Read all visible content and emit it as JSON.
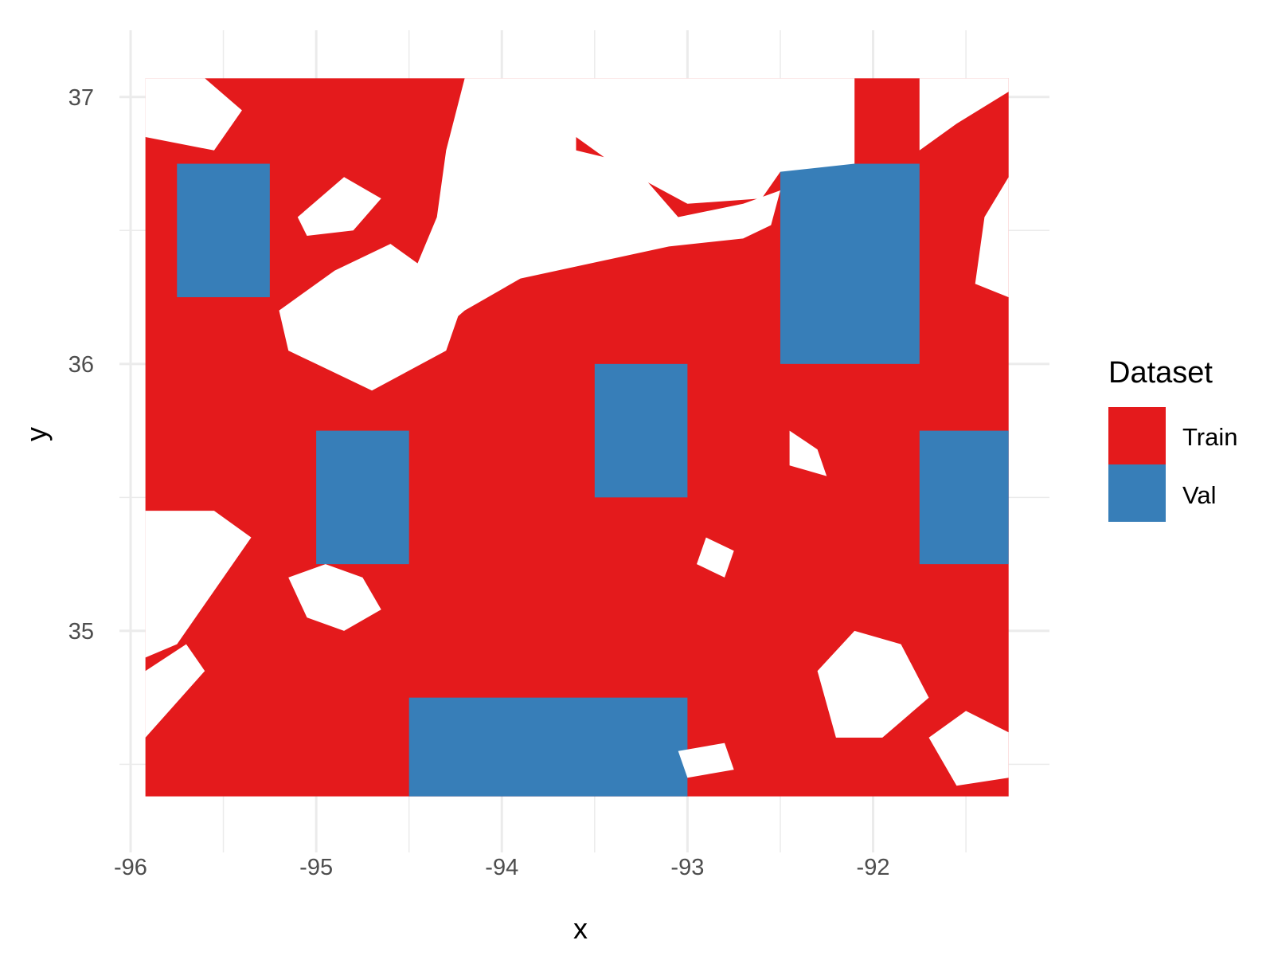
{
  "chart_data": {
    "type": "heatmap",
    "title": "",
    "xlabel": "x",
    "ylabel": "y",
    "xlim": [
      -96.06,
      -91.05
    ],
    "ylim": [
      34.17,
      37.25
    ],
    "x_ticks": [
      -96,
      -95,
      -94,
      -93,
      -92
    ],
    "x_tick_labels": [
      "-96",
      "-95",
      "-94",
      "-93",
      "-92"
    ],
    "y_ticks": [
      35,
      36,
      37
    ],
    "y_tick_labels": [
      "35",
      "36",
      "37"
    ],
    "grid": true,
    "legend": {
      "title": "Dataset",
      "position": "right",
      "entries": [
        {
          "label": "Train",
          "color": "#E41A1C"
        },
        {
          "label": "Val",
          "color": "#377EB8"
        }
      ]
    },
    "extent": {
      "x": [
        -95.92,
        -91.27
      ],
      "y": [
        34.38,
        37.07
      ]
    },
    "categories": [
      "Train",
      "Val"
    ],
    "val_blocks": [
      {
        "x": [
          -95.75,
          -95.25
        ],
        "y": [
          36.25,
          36.75
        ]
      },
      {
        "x": [
          -95.0,
          -94.5
        ],
        "y": [
          35.25,
          35.75
        ]
      },
      {
        "x": [
          -93.5,
          -93.0
        ],
        "y": [
          35.5,
          36.0
        ]
      },
      {
        "x": [
          -94.5,
          -93.0
        ],
        "y": [
          34.38,
          34.75
        ]
      },
      {
        "x": [
          -92.5,
          -91.75
        ],
        "y": [
          36.0,
          36.75
        ]
      },
      {
        "x": [
          -91.75,
          -91.27
        ],
        "y": [
          35.25,
          35.75
        ]
      }
    ],
    "no_data_regions": [
      {
        "points": [
          [
            -95.92,
            37.07
          ],
          [
            -95.6,
            37.07
          ],
          [
            -95.4,
            36.95
          ],
          [
            -95.55,
            36.8
          ],
          [
            -95.92,
            36.85
          ]
        ]
      },
      {
        "points": [
          [
            -95.2,
            36.2
          ],
          [
            -94.9,
            36.35
          ],
          [
            -94.6,
            36.45
          ],
          [
            -94.2,
            36.25
          ],
          [
            -94.3,
            36.05
          ],
          [
            -94.7,
            35.9
          ],
          [
            -95.0,
            36.0
          ],
          [
            -95.15,
            36.05
          ]
        ]
      },
      {
        "points": [
          [
            -95.1,
            36.55
          ],
          [
            -94.85,
            36.7
          ],
          [
            -94.65,
            36.62
          ],
          [
            -94.8,
            36.5
          ],
          [
            -95.05,
            36.48
          ]
        ]
      },
      {
        "points": [
          [
            -94.2,
            37.07
          ],
          [
            -93.6,
            37.07
          ],
          [
            -93.6,
            36.8
          ],
          [
            -93.3,
            36.75
          ],
          [
            -93.05,
            36.55
          ],
          [
            -92.7,
            36.6
          ],
          [
            -92.5,
            36.65
          ],
          [
            -92.55,
            36.52
          ],
          [
            -92.7,
            36.47
          ],
          [
            -93.1,
            36.44
          ],
          [
            -93.5,
            36.38
          ],
          [
            -93.9,
            36.32
          ],
          [
            -94.2,
            36.2
          ],
          [
            -94.45,
            36.05
          ],
          [
            -94.5,
            36.3
          ],
          [
            -94.35,
            36.55
          ],
          [
            -94.3,
            36.8
          ]
        ]
      },
      {
        "points": [
          [
            -93.6,
            37.07
          ],
          [
            -92.1,
            37.07
          ],
          [
            -92.1,
            36.75
          ],
          [
            -92.5,
            36.72
          ],
          [
            -92.6,
            36.62
          ],
          [
            -93.0,
            36.6
          ],
          [
            -93.4,
            36.75
          ],
          [
            -93.6,
            36.85
          ]
        ]
      },
      {
        "points": [
          [
            -91.75,
            37.07
          ],
          [
            -91.27,
            37.07
          ],
          [
            -91.27,
            37.02
          ],
          [
            -91.55,
            36.9
          ],
          [
            -91.75,
            36.8
          ]
        ]
      },
      {
        "points": [
          [
            -91.27,
            36.7
          ],
          [
            -91.27,
            36.25
          ],
          [
            -91.45,
            36.3
          ],
          [
            -91.4,
            36.55
          ]
        ]
      },
      {
        "points": [
          [
            -95.92,
            35.45
          ],
          [
            -95.55,
            35.45
          ],
          [
            -95.35,
            35.35
          ],
          [
            -95.55,
            35.15
          ],
          [
            -95.75,
            34.95
          ],
          [
            -95.92,
            34.9
          ]
        ]
      },
      {
        "points": [
          [
            -95.92,
            34.85
          ],
          [
            -95.7,
            34.95
          ],
          [
            -95.6,
            34.85
          ],
          [
            -95.92,
            34.6
          ]
        ]
      },
      {
        "points": [
          [
            -95.15,
            35.2
          ],
          [
            -94.95,
            35.25
          ],
          [
            -94.75,
            35.2
          ],
          [
            -94.65,
            35.08
          ],
          [
            -94.85,
            35.0
          ],
          [
            -95.05,
            35.05
          ]
        ]
      },
      {
        "points": [
          [
            -93.05,
            34.55
          ],
          [
            -92.8,
            34.58
          ],
          [
            -92.75,
            34.48
          ],
          [
            -93.0,
            34.45
          ]
        ]
      },
      {
        "points": [
          [
            -92.3,
            34.85
          ],
          [
            -92.1,
            35.0
          ],
          [
            -91.85,
            34.95
          ],
          [
            -91.7,
            34.75
          ],
          [
            -91.95,
            34.6
          ],
          [
            -92.2,
            34.6
          ]
        ]
      },
      {
        "points": [
          [
            -91.7,
            34.6
          ],
          [
            -91.5,
            34.7
          ],
          [
            -91.27,
            34.62
          ],
          [
            -91.27,
            34.45
          ],
          [
            -91.55,
            34.42
          ]
        ]
      },
      {
        "points": [
          [
            -92.45,
            35.75
          ],
          [
            -92.3,
            35.68
          ],
          [
            -92.25,
            35.58
          ],
          [
            -92.45,
            35.62
          ]
        ]
      },
      {
        "points": [
          [
            -92.9,
            35.35
          ],
          [
            -92.75,
            35.3
          ],
          [
            -92.8,
            35.2
          ],
          [
            -92.95,
            35.25
          ]
        ]
      }
    ]
  }
}
